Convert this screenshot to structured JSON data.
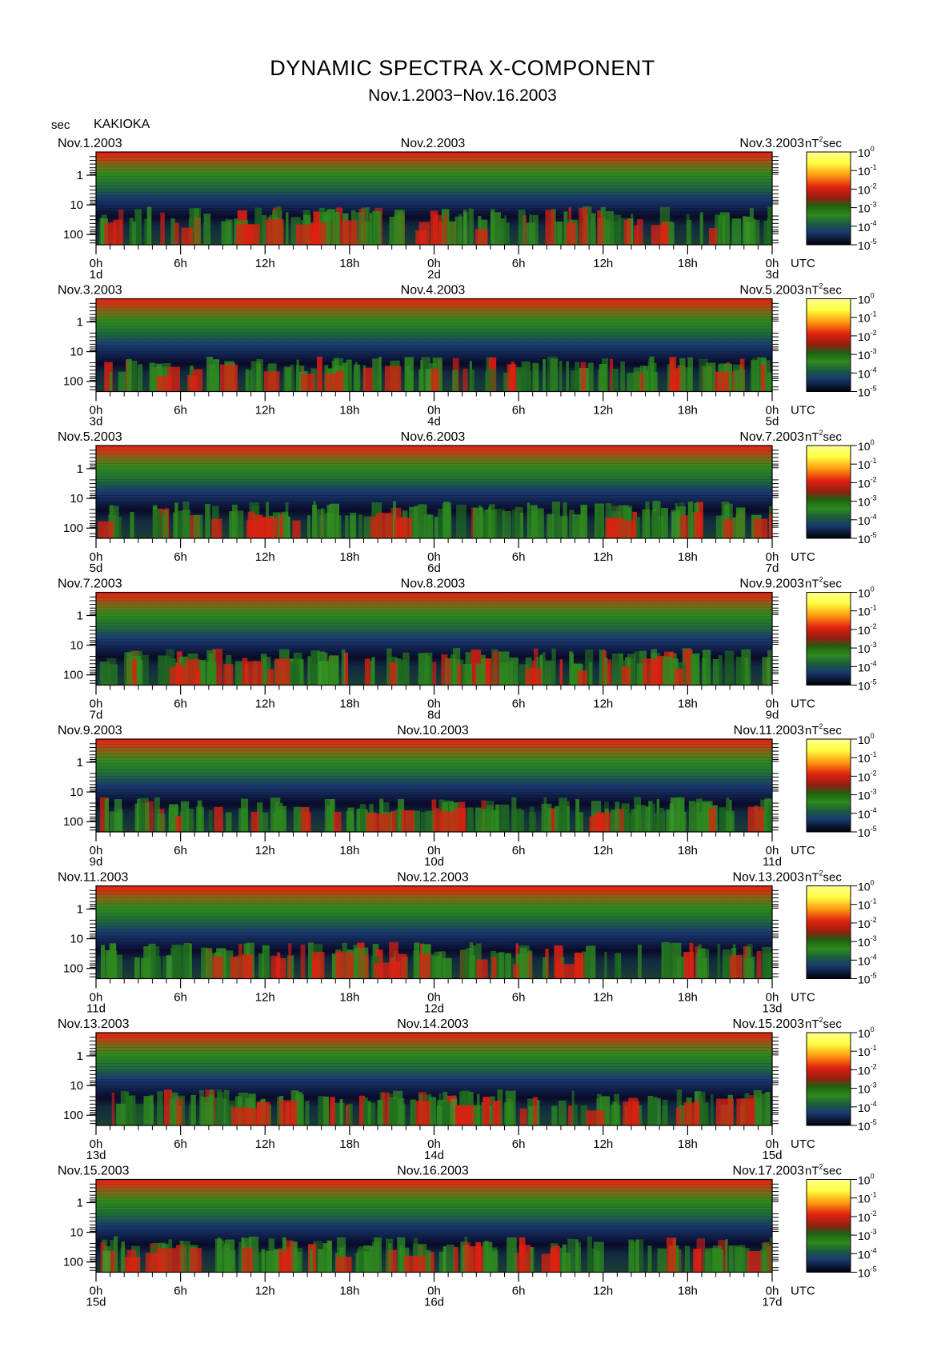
{
  "title": "DYNAMIC SPECTRA X-COMPONENT",
  "subtitle": "Nov.1.2003−Nov.16.2003",
  "y_unit": "sec",
  "station": "KAKIOKA",
  "utc_label": "UTC",
  "colorbar_unit": "nT",
  "colorbar_unit_sup": "2",
  "colorbar_unit_suffix": "sec",
  "colors": {
    "low": "#0a0a28",
    "mid_low": "#1a3a70",
    "mid": "#2e8a1e",
    "high": "#e02010",
    "max": "#ffff40"
  },
  "chart_data": {
    "type": "heatmap",
    "title": "DYNAMIC SPECTRA X-COMPONENT",
    "subtitle": "Nov.1.2003−Nov.16.2003",
    "ylabel": "sec",
    "y_scale": "log",
    "y_ticks": [
      "1",
      "10",
      "100"
    ],
    "x_ticks": [
      "0h",
      "6h",
      "12h",
      "18h",
      "0h",
      "6h",
      "12h",
      "18h",
      "0h"
    ],
    "colorbar": {
      "unit": "nT^2 sec",
      "scale": "log",
      "range": [
        1e-05,
        1
      ],
      "ticks": [
        {
          "base": "10",
          "exp": "0"
        },
        {
          "base": "10",
          "exp": "-1"
        },
        {
          "base": "10",
          "exp": "-2"
        },
        {
          "base": "10",
          "exp": "-3"
        },
        {
          "base": "10",
          "exp": "-4"
        },
        {
          "base": "10",
          "exp": "-5"
        }
      ]
    },
    "panels": [
      {
        "date_left": "Nov.1.2003",
        "date_mid": "Nov.2.2003",
        "date_right": "Nov.3.2003",
        "day_left": "1d",
        "day_mid": "2d",
        "day_right": "3d"
      },
      {
        "date_left": "Nov.3.2003",
        "date_mid": "Nov.4.2003",
        "date_right": "Nov.5.2003",
        "day_left": "3d",
        "day_mid": "4d",
        "day_right": "5d"
      },
      {
        "date_left": "Nov.5.2003",
        "date_mid": "Nov.6.2003",
        "date_right": "Nov.7.2003",
        "day_left": "5d",
        "day_mid": "6d",
        "day_right": "7d"
      },
      {
        "date_left": "Nov.7.2003",
        "date_mid": "Nov.8.2003",
        "date_right": "Nov.9.2003",
        "day_left": "7d",
        "day_mid": "8d",
        "day_right": "9d"
      },
      {
        "date_left": "Nov.9.2003",
        "date_mid": "Nov.10.2003",
        "date_right": "Nov.11.2003",
        "day_left": "9d",
        "day_mid": "10d",
        "day_right": "11d"
      },
      {
        "date_left": "Nov.11.2003",
        "date_mid": "Nov.12.2003",
        "date_right": "Nov.13.2003",
        "day_left": "11d",
        "day_mid": "12d",
        "day_right": "13d"
      },
      {
        "date_left": "Nov.13.2003",
        "date_mid": "Nov.14.2003",
        "date_right": "Nov.15.2003",
        "day_left": "13d",
        "day_mid": "14d",
        "day_right": "15d"
      },
      {
        "date_left": "Nov.15.2003",
        "date_mid": "Nov.16.2003",
        "date_right": "Nov.17.2003",
        "day_left": "15d",
        "day_mid": "16d",
        "day_right": "17d"
      }
    ]
  }
}
